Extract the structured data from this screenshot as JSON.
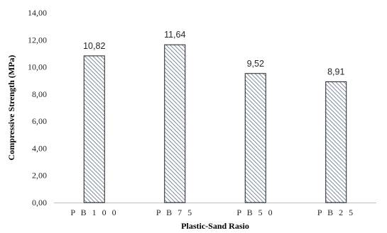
{
  "chart_data": {
    "type": "bar",
    "categories": [
      "PB100",
      "PB75",
      "PB50",
      "PB25"
    ],
    "category_labels": [
      "P B 1 0 0",
      "P B 7 5",
      "P B 5 0",
      "P B 2 5"
    ],
    "values": [
      10.82,
      11.64,
      9.52,
      8.91
    ],
    "data_labels": [
      "10,82",
      "11,64",
      "9,52",
      "8,91"
    ],
    "title": "",
    "xlabel": "Plastic-Sand Rasio",
    "ylabel": "Compressive Strength (MPa)",
    "ylim": [
      0,
      14
    ],
    "yticks": [
      0,
      2,
      4,
      6,
      8,
      10,
      12,
      14
    ],
    "ytick_labels": [
      "0,00",
      "2,00",
      "4,00",
      "6,00",
      "8,00",
      "10,00",
      "12,00",
      "14,00"
    ],
    "grid": false,
    "legend": "none",
    "bar_fill": "diagonal-hatch",
    "colors": {
      "bar_stroke": "#1f1f1f",
      "hatch": "#5a6e86",
      "axis": "#bfbfbf",
      "text": "#262626"
    }
  }
}
